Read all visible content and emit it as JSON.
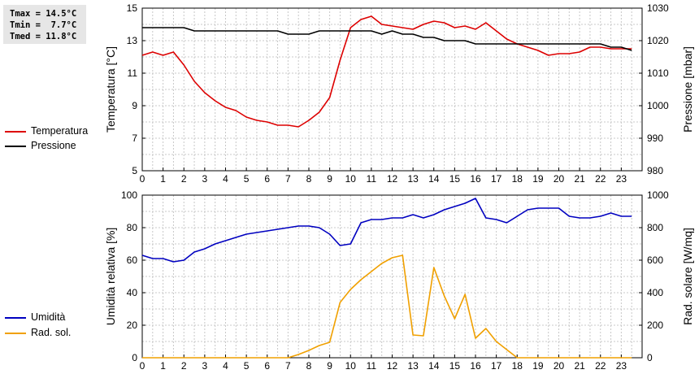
{
  "stats": {
    "tmax": "Tmax = 14.5°C",
    "tmin": "Tmin =  7.7°C",
    "tmed": "Tmed = 11.8°C"
  },
  "legend_top": [
    {
      "label": "Temperatura",
      "color": "#dd0000"
    },
    {
      "label": "Pressione",
      "color": "#000000"
    }
  ],
  "legend_bottom": [
    {
      "label": "Umidità",
      "color": "#0000c0"
    },
    {
      "label": "Rad. sol.",
      "color": "#f0a000"
    }
  ],
  "chart_data": [
    {
      "type": "line",
      "xlim": [
        0,
        24
      ],
      "x_ticks": [
        "0",
        "1",
        "2",
        "3",
        "4",
        "5",
        "6",
        "7",
        "8",
        "9",
        "10",
        "11",
        "12",
        "13",
        "14",
        "15",
        "16",
        "17",
        "18",
        "19",
        "20",
        "21",
        "22",
        "23"
      ],
      "ylabel_left": "Temperatura [°C]",
      "ylim_left": [
        5,
        15
      ],
      "y_ticks_left": [
        "5",
        "7",
        "9",
        "11",
        "13",
        "15"
      ],
      "ylabel_right": "Pressione [mbar]",
      "ylim_right": [
        980,
        1030
      ],
      "y_ticks_right": [
        "980",
        "990",
        "1000",
        "1010",
        "1020",
        "1030"
      ],
      "grid": true,
      "legend": "left",
      "series": [
        {
          "name": "Temperatura",
          "axis": "left",
          "color": "#dd0000",
          "x": [
            0,
            0.5,
            1,
            1.5,
            2,
            2.5,
            3,
            3.5,
            4,
            4.5,
            5,
            5.5,
            6,
            6.5,
            7,
            7.5,
            8,
            8.5,
            9,
            9.5,
            10,
            10.5,
            11,
            11.5,
            12,
            12.5,
            13,
            13.5,
            14,
            14.5,
            15,
            15.5,
            16,
            16.5,
            17,
            17.5,
            18,
            18.5,
            19,
            19.5,
            20,
            20.5,
            21,
            21.5,
            22,
            22.5,
            23,
            23.5
          ],
          "values": [
            12.1,
            12.3,
            12.1,
            12.3,
            11.5,
            10.5,
            9.8,
            9.3,
            8.9,
            8.7,
            8.3,
            8.1,
            8.0,
            7.8,
            7.8,
            7.7,
            8.1,
            8.6,
            9.5,
            11.8,
            13.8,
            14.3,
            14.5,
            14.0,
            13.9,
            13.8,
            13.7,
            14.0,
            14.2,
            14.1,
            13.8,
            13.9,
            13.7,
            14.1,
            13.6,
            13.1,
            12.8,
            12.6,
            12.4,
            12.1,
            12.2,
            12.2,
            12.3,
            12.6,
            12.6,
            12.5,
            12.5,
            12.5
          ]
        },
        {
          "name": "Pressione",
          "axis": "right",
          "color": "#000000",
          "x": [
            0,
            0.5,
            1,
            1.5,
            2,
            2.5,
            3,
            3.5,
            4,
            4.5,
            5,
            5.5,
            6,
            6.5,
            7,
            7.5,
            8,
            8.5,
            9,
            9.5,
            10,
            10.5,
            11,
            11.5,
            12,
            12.5,
            13,
            13.5,
            14,
            14.5,
            15,
            15.5,
            16,
            16.5,
            17,
            17.5,
            18,
            18.5,
            19,
            19.5,
            20,
            20.5,
            21,
            21.5,
            22,
            22.5,
            23,
            23.5
          ],
          "values": [
            1024,
            1024,
            1024,
            1024,
            1024,
            1023,
            1023,
            1023,
            1023,
            1023,
            1023,
            1023,
            1023,
            1023,
            1022,
            1022,
            1022,
            1023,
            1023,
            1023,
            1023,
            1023,
            1023,
            1022,
            1023,
            1022,
            1022,
            1021,
            1021,
            1020,
            1020,
            1020,
            1019,
            1019,
            1019,
            1019,
            1019,
            1019,
            1019,
            1019,
            1019,
            1019,
            1019,
            1019,
            1019,
            1018,
            1018,
            1017
          ]
        }
      ]
    },
    {
      "type": "line",
      "xlim": [
        0,
        24
      ],
      "x_ticks": [
        "0",
        "1",
        "2",
        "3",
        "4",
        "5",
        "6",
        "7",
        "8",
        "9",
        "10",
        "11",
        "12",
        "13",
        "14",
        "15",
        "16",
        "17",
        "18",
        "19",
        "20",
        "21",
        "22",
        "23"
      ],
      "ylabel_left": "Umidità relativa [%]",
      "ylim_left": [
        0,
        100
      ],
      "y_ticks_left": [
        "0",
        "20",
        "40",
        "60",
        "80",
        "100"
      ],
      "ylabel_right": "Rad. solare [W/mq]",
      "ylim_right": [
        0,
        1000
      ],
      "y_ticks_right": [
        "0",
        "200",
        "400",
        "600",
        "800",
        "1000"
      ],
      "grid": true,
      "legend": "left",
      "series": [
        {
          "name": "Umidità",
          "axis": "left",
          "color": "#0000c0",
          "x": [
            0,
            0.5,
            1,
            1.5,
            2,
            2.5,
            3,
            3.5,
            4,
            4.5,
            5,
            5.5,
            6,
            6.5,
            7,
            7.5,
            8,
            8.5,
            9,
            9.5,
            10,
            10.5,
            11,
            11.5,
            12,
            12.5,
            13,
            13.5,
            14,
            14.5,
            15,
            15.5,
            16,
            16.5,
            17,
            17.5,
            18,
            18.5,
            19,
            19.5,
            20,
            20.5,
            21,
            21.5,
            22,
            22.5,
            23,
            23.5
          ],
          "values": [
            63,
            61,
            61,
            59,
            60,
            65,
            67,
            70,
            72,
            74,
            76,
            77,
            78,
            79,
            80,
            81,
            81,
            80,
            76,
            69,
            70,
            83,
            85,
            85,
            86,
            86,
            88,
            86,
            88,
            91,
            93,
            95,
            98,
            86,
            85,
            83,
            87,
            91,
            92,
            92,
            92,
            87,
            86,
            86,
            87,
            89,
            87,
            87
          ]
        },
        {
          "name": "Rad. sol.",
          "axis": "right",
          "color": "#f0a000",
          "x": [
            0,
            0.5,
            1,
            1.5,
            2,
            2.5,
            3,
            3.5,
            4,
            4.5,
            5,
            5.5,
            6,
            6.5,
            7,
            7.5,
            8,
            8.5,
            9,
            9.5,
            10,
            10.5,
            11,
            11.5,
            12,
            12.5,
            13,
            13.5,
            14,
            14.5,
            15,
            15.5,
            16,
            16.5,
            17,
            17.5,
            18,
            18.5,
            19,
            19.5,
            20,
            20.5,
            21,
            21.5,
            22,
            22.5,
            23,
            23.5
          ],
          "values": [
            0,
            0,
            0,
            0,
            0,
            0,
            0,
            0,
            0,
            0,
            0,
            0,
            0,
            0,
            0,
            20,
            45,
            75,
            95,
            340,
            420,
            480,
            530,
            580,
            615,
            630,
            140,
            135,
            555,
            380,
            240,
            390,
            120,
            180,
            100,
            50,
            0,
            0,
            0,
            0,
            0,
            0,
            0,
            0,
            0,
            0,
            0,
            0
          ]
        }
      ]
    }
  ]
}
